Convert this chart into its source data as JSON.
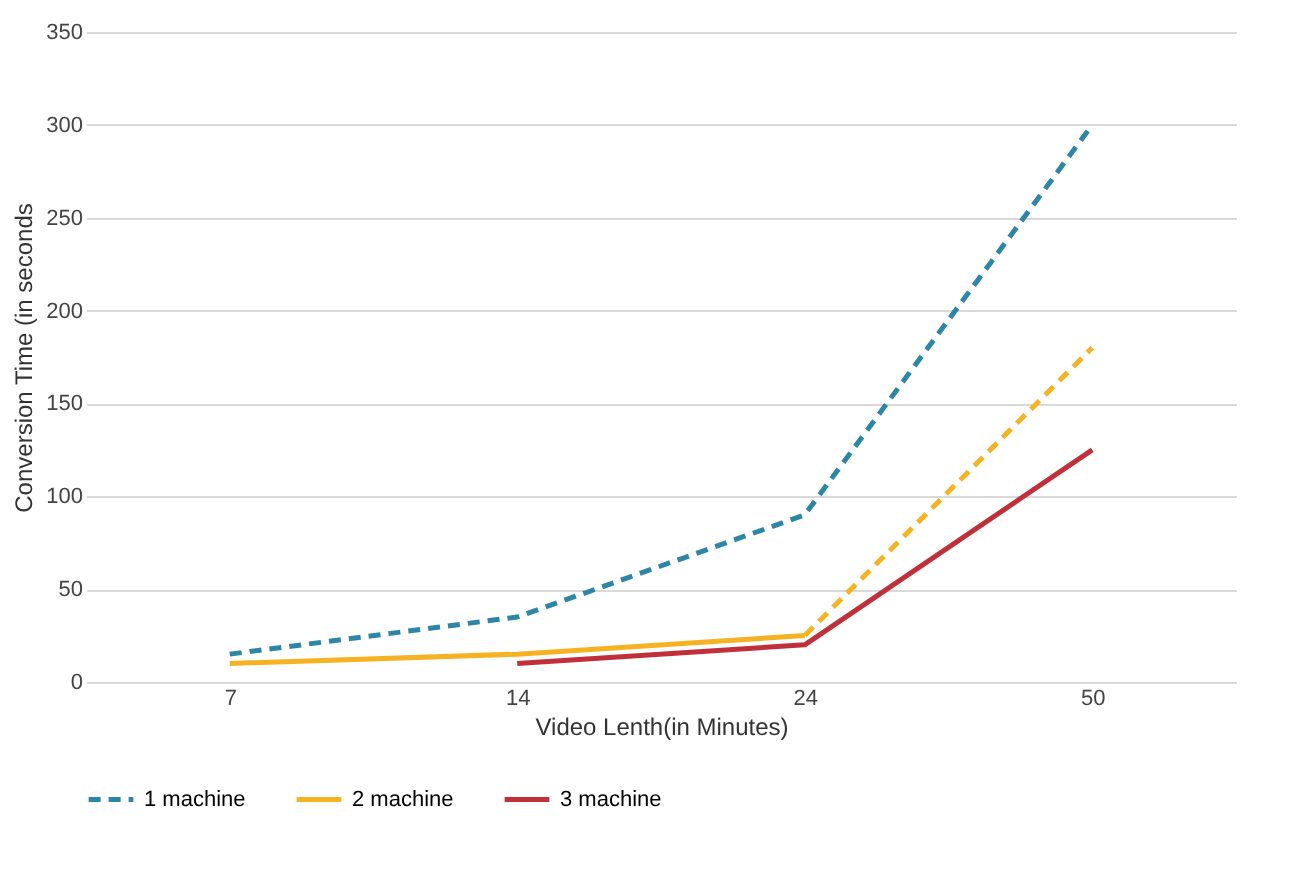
{
  "chart_data": {
    "type": "line",
    "xlabel": "Video Lenth(in Minutes)",
    "ylabel": "Conversion Time (in seconds",
    "categories": [
      "7",
      "14",
      "24",
      "50"
    ],
    "series": [
      {
        "name": "1 machine",
        "color": "#2e86a6",
        "line_style": "dashed",
        "values": [
          15,
          35,
          90,
          300
        ]
      },
      {
        "name": "2 machine",
        "color": "#f5b323",
        "line_style": "solid",
        "values": [
          10,
          15,
          25,
          null
        ]
      },
      {
        "color": "#f5b323",
        "line_style": "dashed",
        "values": [
          null,
          null,
          25,
          180
        ]
      },
      {
        "name": "3 machine",
        "color": "#c0303a",
        "line_style": "solid",
        "values": [
          null,
          10,
          20,
          125
        ]
      }
    ],
    "ylim": [
      0,
      350
    ],
    "yticks": [
      0,
      50,
      100,
      150,
      200,
      250,
      300,
      350
    ],
    "grid": "y",
    "legend": "bottom"
  }
}
